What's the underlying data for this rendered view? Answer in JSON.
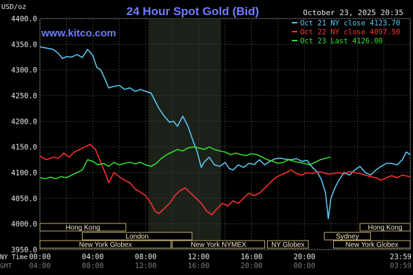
{
  "chart_data": {
    "type": "line",
    "title": "24 Hour Spot Gold (Bid)",
    "watermark": "www.kitco.com",
    "timestamp": "October 23, 2025 20:35",
    "ylabel": "USD/oz",
    "ylim": [
      3950,
      4400
    ],
    "yticks": [
      "4400.0",
      "4350.0",
      "4300.0",
      "4250.0",
      "4200.0",
      "4150.0",
      "4100.0",
      "4050.0",
      "4000.0",
      "3950.0"
    ],
    "xticks_ny": [
      "00:00",
      "04:00",
      "08:00",
      "12:00",
      "16:00",
      "20:00",
      "23:59"
    ],
    "xticks_gmt": [
      "04:00",
      "08:00",
      "12:00",
      "16:00",
      "20:00",
      "00:00",
      "03:59"
    ],
    "x_row_labels": [
      "NY Time",
      "GMT"
    ],
    "sessions": [
      {
        "label": "Hong Kong",
        "row": 0,
        "start": 0.0,
        "end": 6.5
      },
      {
        "label": "London",
        "row": 1,
        "start": 3.2,
        "end": 11.5
      },
      {
        "label": "New York Globex",
        "row": 2,
        "start": 0.0,
        "end": 9.9
      },
      {
        "label": "New York NYMEX",
        "row": 2,
        "start": 10.0,
        "end": 17.0
      },
      {
        "label": "NY Globex",
        "row": 2,
        "start": 17.2,
        "end": 20.3
      },
      {
        "label": "Sydney",
        "row": 1,
        "start": 21.5,
        "end": 25.0
      },
      {
        "label": "Hong Kong",
        "row": 0,
        "start": 24.2,
        "end": 28.0
      },
      {
        "label": "New York Globex",
        "row": 2,
        "start": 22.2,
        "end": 28.0
      }
    ],
    "highlight": {
      "start": 8.2,
      "end": 13.7
    },
    "legend": [
      {
        "label": "Oct 21 NY close 4123.70",
        "color": "#5bc8f5"
      },
      {
        "label": "Oct 22 NY close 4097.50",
        "color": "#ff3030"
      },
      {
        "label": "Oct 23 Last 4126.00",
        "color": "#33dd33"
      }
    ],
    "series": [
      {
        "name": "Oct 21 NY close 4123.70",
        "color": "#5bc8f5",
        "points": [
          [
            0,
            4345
          ],
          [
            0.6,
            4342
          ],
          [
            1.0,
            4340
          ],
          [
            1.4,
            4332
          ],
          [
            1.7,
            4322
          ],
          [
            2.0,
            4326
          ],
          [
            2.4,
            4325
          ],
          [
            2.8,
            4330
          ],
          [
            3.2,
            4324
          ],
          [
            3.6,
            4340
          ],
          [
            4.0,
            4328
          ],
          [
            4.3,
            4305
          ],
          [
            4.6,
            4300
          ],
          [
            4.9,
            4283
          ],
          [
            5.2,
            4265
          ],
          [
            5.6,
            4268
          ],
          [
            6.0,
            4270
          ],
          [
            6.4,
            4262
          ],
          [
            6.8,
            4265
          ],
          [
            7.2,
            4258
          ],
          [
            7.6,
            4262
          ],
          [
            8.0,
            4258
          ],
          [
            8.4,
            4255
          ],
          [
            8.7,
            4240
          ],
          [
            9.0,
            4225
          ],
          [
            9.4,
            4210
          ],
          [
            9.8,
            4198
          ],
          [
            10.1,
            4200
          ],
          [
            10.4,
            4190
          ],
          [
            10.8,
            4210
          ],
          [
            11.2,
            4190
          ],
          [
            11.6,
            4160
          ],
          [
            11.9,
            4140
          ],
          [
            12.2,
            4110
          ],
          [
            12.4,
            4120
          ],
          [
            12.8,
            4130
          ],
          [
            13.2,
            4115
          ],
          [
            13.6,
            4112
          ],
          [
            14.0,
            4120
          ],
          [
            14.3,
            4108
          ],
          [
            14.6,
            4105
          ],
          [
            15.0,
            4115
          ],
          [
            15.4,
            4110
          ],
          [
            15.8,
            4118
          ],
          [
            16.2,
            4116
          ],
          [
            16.6,
            4125
          ],
          [
            17.0,
            4115
          ],
          [
            17.4,
            4122
          ],
          [
            17.8,
            4127
          ],
          [
            18.2,
            4128
          ],
          [
            18.6,
            4126
          ],
          [
            19.0,
            4125
          ],
          [
            19.4,
            4127
          ],
          [
            19.8,
            4122
          ],
          [
            20.2,
            4123.7
          ],
          [
            20.6,
            4110
          ],
          [
            21.0,
            4100
          ],
          [
            21.3,
            4085
          ],
          [
            21.6,
            4060
          ],
          [
            21.8,
            4010
          ],
          [
            22.0,
            4050
          ],
          [
            22.3,
            4070
          ],
          [
            22.6,
            4085
          ],
          [
            23.0,
            4100
          ],
          [
            23.4,
            4095
          ],
          [
            23.8,
            4105
          ],
          [
            24.2,
            4112
          ],
          [
            24.6,
            4100
          ],
          [
            25.0,
            4095
          ],
          [
            25.4,
            4105
          ],
          [
            25.8,
            4112
          ],
          [
            26.2,
            4118
          ],
          [
            26.6,
            4118
          ],
          [
            27.0,
            4115
          ],
          [
            27.4,
            4125
          ],
          [
            27.7,
            4140
          ],
          [
            28.0,
            4135
          ]
        ]
      },
      {
        "name": "Oct 22 NY close 4097.50",
        "color": "#ff3030",
        "points": [
          [
            0,
            4132
          ],
          [
            0.5,
            4125
          ],
          [
            1.0,
            4130
          ],
          [
            1.4,
            4128
          ],
          [
            1.8,
            4138
          ],
          [
            2.2,
            4130
          ],
          [
            2.6,
            4140
          ],
          [
            3.0,
            4145
          ],
          [
            3.4,
            4150
          ],
          [
            3.8,
            4155
          ],
          [
            4.2,
            4145
          ],
          [
            4.6,
            4120
          ],
          [
            5.0,
            4095
          ],
          [
            5.2,
            4080
          ],
          [
            5.6,
            4100
          ],
          [
            6.0,
            4092
          ],
          [
            6.4,
            4085
          ],
          [
            6.8,
            4080
          ],
          [
            7.2,
            4068
          ],
          [
            7.6,
            4062
          ],
          [
            8.0,
            4055
          ],
          [
            8.4,
            4040
          ],
          [
            8.7,
            4025
          ],
          [
            9.0,
            4020
          ],
          [
            9.4,
            4030
          ],
          [
            9.8,
            4040
          ],
          [
            10.2,
            4055
          ],
          [
            10.6,
            4065
          ],
          [
            11.0,
            4070
          ],
          [
            11.4,
            4060
          ],
          [
            11.8,
            4050
          ],
          [
            12.2,
            4040
          ],
          [
            12.6,
            4025
          ],
          [
            13.0,
            4018
          ],
          [
            13.4,
            4030
          ],
          [
            13.8,
            4040
          ],
          [
            14.2,
            4035
          ],
          [
            14.6,
            4045
          ],
          [
            15.0,
            4040
          ],
          [
            15.4,
            4050
          ],
          [
            15.8,
            4060
          ],
          [
            16.2,
            4055
          ],
          [
            16.6,
            4060
          ],
          [
            17.0,
            4070
          ],
          [
            17.4,
            4080
          ],
          [
            17.8,
            4090
          ],
          [
            18.2,
            4095
          ],
          [
            18.6,
            4100
          ],
          [
            19.0,
            4105
          ],
          [
            19.4,
            4098
          ],
          [
            19.8,
            4095
          ],
          [
            20.2,
            4100
          ],
          [
            20.6,
            4098
          ],
          [
            21.0,
            4102
          ],
          [
            21.4,
            4100
          ],
          [
            21.8,
            4097
          ],
          [
            22.2,
            4098
          ],
          [
            22.6,
            4100
          ],
          [
            23.0,
            4097
          ],
          [
            23.4,
            4102
          ],
          [
            23.8,
            4100
          ],
          [
            24.2,
            4098
          ],
          [
            24.6,
            4095
          ],
          [
            25.0,
            4092
          ],
          [
            25.4,
            4090
          ],
          [
            25.8,
            4085
          ],
          [
            26.2,
            4090
          ],
          [
            26.6,
            4094
          ],
          [
            27.0,
            4090
          ],
          [
            27.4,
            4095
          ],
          [
            28.0,
            4092
          ]
        ]
      },
      {
        "name": "Oct 23 Last 4126.00",
        "color": "#33dd33",
        "points": [
          [
            0,
            4090
          ],
          [
            0.4,
            4088
          ],
          [
            0.8,
            4091
          ],
          [
            1.2,
            4088
          ],
          [
            1.6,
            4092
          ],
          [
            2.0,
            4090
          ],
          [
            2.4,
            4095
          ],
          [
            2.8,
            4100
          ],
          [
            3.2,
            4105
          ],
          [
            3.6,
            4125
          ],
          [
            4.0,
            4122
          ],
          [
            4.4,
            4115
          ],
          [
            4.8,
            4118
          ],
          [
            5.2,
            4112
          ],
          [
            5.6,
            4120
          ],
          [
            6.0,
            4115
          ],
          [
            6.4,
            4118
          ],
          [
            6.8,
            4120
          ],
          [
            7.2,
            4117
          ],
          [
            7.6,
            4120
          ],
          [
            8.0,
            4115
          ],
          [
            8.4,
            4112
          ],
          [
            8.8,
            4118
          ],
          [
            9.2,
            4128
          ],
          [
            9.6,
            4135
          ],
          [
            10.0,
            4140
          ],
          [
            10.4,
            4145
          ],
          [
            10.8,
            4142
          ],
          [
            11.2,
            4148
          ],
          [
            11.6,
            4150
          ],
          [
            12.0,
            4148
          ],
          [
            12.4,
            4145
          ],
          [
            12.8,
            4150
          ],
          [
            13.2,
            4145
          ],
          [
            13.6,
            4142
          ],
          [
            14.0,
            4140
          ],
          [
            14.4,
            4135
          ],
          [
            14.8,
            4138
          ],
          [
            15.2,
            4135
          ],
          [
            15.6,
            4133
          ],
          [
            16.0,
            4137
          ],
          [
            16.4,
            4135
          ],
          [
            16.8,
            4130
          ],
          [
            17.2,
            4125
          ],
          [
            17.6,
            4122
          ],
          [
            18.0,
            4118
          ],
          [
            18.4,
            4120
          ],
          [
            18.8,
            4125
          ],
          [
            19.2,
            4122
          ],
          [
            19.6,
            4120
          ],
          [
            20.0,
            4118
          ],
          [
            20.4,
            4115
          ],
          [
            20.8,
            4120
          ],
          [
            21.2,
            4125
          ],
          [
            21.6,
            4128
          ],
          [
            22.0,
            4130
          ]
        ]
      }
    ]
  }
}
